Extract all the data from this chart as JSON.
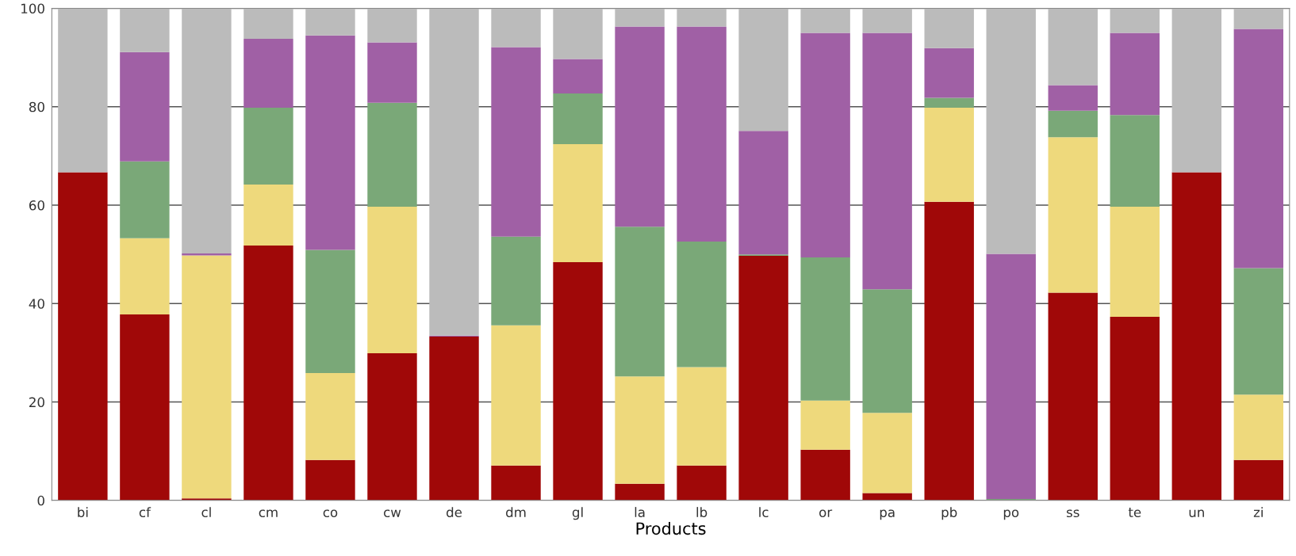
{
  "chart_data": {
    "type": "bar",
    "stacked": true,
    "xlabel": "Products",
    "categories": [
      "bi",
      "cf",
      "cl",
      "cm",
      "co",
      "cw",
      "de",
      "dm",
      "gl",
      "la",
      "lb",
      "lc",
      "or",
      "pa",
      "pb",
      "po",
      "ss",
      "te",
      "un",
      "zi"
    ],
    "series": [
      {
        "color": "#a00808",
        "values": [
          66.7,
          37.8,
          0.4,
          51.8,
          8.2,
          29.9,
          33.3,
          7.1,
          48.4,
          3.4,
          7.1,
          49.7,
          10.3,
          1.5,
          60.7,
          0,
          42.2,
          37.3,
          66.7,
          8.2
        ]
      },
      {
        "color": "#eed97c",
        "values": [
          0,
          15.5,
          49.4,
          12.4,
          17.7,
          29.8,
          0,
          28.5,
          24.0,
          21.8,
          20.0,
          0,
          10.0,
          16.3,
          19.1,
          0,
          31.6,
          22.4,
          0,
          13.3
        ]
      },
      {
        "color": "#7aa878",
        "values": [
          0,
          15.6,
          0,
          15.6,
          25.0,
          21.1,
          0,
          18.0,
          10.3,
          30.4,
          25.5,
          0.3,
          29.1,
          25.1,
          2.0,
          0.3,
          5.4,
          18.6,
          0,
          25.7
        ]
      },
      {
        "color": "#a060a5",
        "values": [
          0,
          22.2,
          0.4,
          14.0,
          43.6,
          12.3,
          0.2,
          38.5,
          7.0,
          40.7,
          43.7,
          25.1,
          45.6,
          52.1,
          10.1,
          49.8,
          5.2,
          16.7,
          0,
          48.6
        ]
      },
      {
        "color": "#bbbbbb",
        "values": [
          33.3,
          8.9,
          49.8,
          6.2,
          5.5,
          6.9,
          66.5,
          7.9,
          10.3,
          3.7,
          3.7,
          24.9,
          5.0,
          5.0,
          8.1,
          49.9,
          15.6,
          5.0,
          33.3,
          4.2
        ]
      }
    ],
    "ylim": [
      0,
      100
    ],
    "yticks": [
      0,
      20,
      40,
      60,
      80,
      100
    ],
    "grid": "y"
  }
}
